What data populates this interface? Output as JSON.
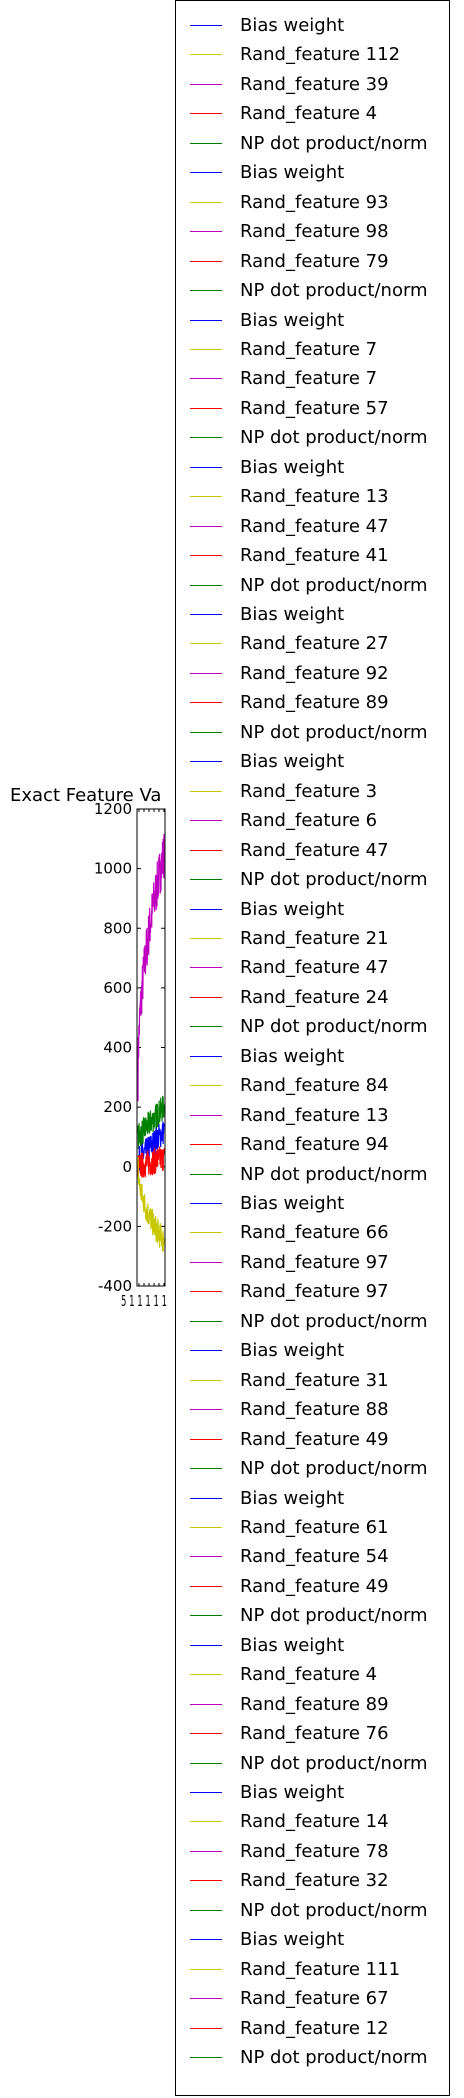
{
  "chart_data": {
    "type": "line",
    "title": "Exact Feature Va",
    "ylim": [
      -400,
      1200
    ],
    "yticks": [
      "-400",
      "-200",
      "0",
      "200",
      "400",
      "600",
      "800",
      "1000",
      "1200"
    ],
    "yticks_values": [
      -400,
      -200,
      0,
      200,
      400,
      600,
      800,
      1000,
      1200
    ],
    "xtick_label": "5 1 1 1 1 1",
    "legend_position": "outside-right",
    "colors": {
      "Bias weight": "#0000ff",
      "Rand_feature": "#c8c800",
      "Rand_feature_alt": "#c000c0",
      "Rand_feature_red": "#ff0000",
      "NP dot product/norm": "#008000"
    },
    "series_summary": [
      {
        "color": "#c000c0",
        "start": 300,
        "end": 1050,
        "role": "rising-magenta"
      },
      {
        "color": "#008000",
        "start": 100,
        "end": 200,
        "role": "green-band"
      },
      {
        "color": "#0000ff",
        "start": 20,
        "end": 120,
        "role": "blue-band"
      },
      {
        "color": "#ff0000",
        "start": 0,
        "end": 30,
        "role": "red-band"
      },
      {
        "color": "#c8c800",
        "start": 0,
        "end": -250,
        "role": "falling-yellow"
      }
    ],
    "legend": [
      {
        "label": "Bias weight",
        "color": "#0000ff"
      },
      {
        "label": "Rand_feature 112",
        "color": "#c8c800"
      },
      {
        "label": "Rand_feature 39",
        "color": "#c000c0"
      },
      {
        "label": "Rand_feature 4",
        "color": "#ff0000"
      },
      {
        "label": "NP dot product/norm",
        "color": "#008000"
      },
      {
        "label": "Bias weight",
        "color": "#0000ff"
      },
      {
        "label": "Rand_feature 93",
        "color": "#c8c800"
      },
      {
        "label": "Rand_feature 98",
        "color": "#c000c0"
      },
      {
        "label": "Rand_feature 79",
        "color": "#ff0000"
      },
      {
        "label": "NP dot product/norm",
        "color": "#008000"
      },
      {
        "label": "Bias weight",
        "color": "#0000ff"
      },
      {
        "label": "Rand_feature 7",
        "color": "#c8c800"
      },
      {
        "label": "Rand_feature 7",
        "color": "#c000c0"
      },
      {
        "label": "Rand_feature 57",
        "color": "#ff0000"
      },
      {
        "label": "NP dot product/norm",
        "color": "#008000"
      },
      {
        "label": "Bias weight",
        "color": "#0000ff"
      },
      {
        "label": "Rand_feature 13",
        "color": "#c8c800"
      },
      {
        "label": "Rand_feature 47",
        "color": "#c000c0"
      },
      {
        "label": "Rand_feature 41",
        "color": "#ff0000"
      },
      {
        "label": "NP dot product/norm",
        "color": "#008000"
      },
      {
        "label": "Bias weight",
        "color": "#0000ff"
      },
      {
        "label": "Rand_feature 27",
        "color": "#c8c800"
      },
      {
        "label": "Rand_feature 92",
        "color": "#c000c0"
      },
      {
        "label": "Rand_feature 89",
        "color": "#ff0000"
      },
      {
        "label": "NP dot product/norm",
        "color": "#008000"
      },
      {
        "label": "Bias weight",
        "color": "#0000ff"
      },
      {
        "label": "Rand_feature 3",
        "color": "#c8c800"
      },
      {
        "label": "Rand_feature 6",
        "color": "#c000c0"
      },
      {
        "label": "Rand_feature 47",
        "color": "#ff0000"
      },
      {
        "label": "NP dot product/norm",
        "color": "#008000"
      },
      {
        "label": "Bias weight",
        "color": "#0000ff"
      },
      {
        "label": "Rand_feature 21",
        "color": "#c8c800"
      },
      {
        "label": "Rand_feature 47",
        "color": "#c000c0"
      },
      {
        "label": "Rand_feature 24",
        "color": "#ff0000"
      },
      {
        "label": "NP dot product/norm",
        "color": "#008000"
      },
      {
        "label": "Bias weight",
        "color": "#0000ff"
      },
      {
        "label": "Rand_feature 84",
        "color": "#c8c800"
      },
      {
        "label": "Rand_feature 13",
        "color": "#c000c0"
      },
      {
        "label": "Rand_feature 94",
        "color": "#ff0000"
      },
      {
        "label": "NP dot product/norm",
        "color": "#008000"
      },
      {
        "label": "Bias weight",
        "color": "#0000ff"
      },
      {
        "label": "Rand_feature 66",
        "color": "#c8c800"
      },
      {
        "label": "Rand_feature 97",
        "color": "#c000c0"
      },
      {
        "label": "Rand_feature 97",
        "color": "#ff0000"
      },
      {
        "label": "NP dot product/norm",
        "color": "#008000"
      },
      {
        "label": "Bias weight",
        "color": "#0000ff"
      },
      {
        "label": "Rand_feature 31",
        "color": "#c8c800"
      },
      {
        "label": "Rand_feature 88",
        "color": "#c000c0"
      },
      {
        "label": "Rand_feature 49",
        "color": "#ff0000"
      },
      {
        "label": "NP dot product/norm",
        "color": "#008000"
      },
      {
        "label": "Bias weight",
        "color": "#0000ff"
      },
      {
        "label": "Rand_feature 61",
        "color": "#c8c800"
      },
      {
        "label": "Rand_feature 54",
        "color": "#c000c0"
      },
      {
        "label": "Rand_feature 49",
        "color": "#ff0000"
      },
      {
        "label": "NP dot product/norm",
        "color": "#008000"
      },
      {
        "label": "Bias weight",
        "color": "#0000ff"
      },
      {
        "label": "Rand_feature 4",
        "color": "#c8c800"
      },
      {
        "label": "Rand_feature 89",
        "color": "#c000c0"
      },
      {
        "label": "Rand_feature 76",
        "color": "#ff0000"
      },
      {
        "label": "NP dot product/norm",
        "color": "#008000"
      },
      {
        "label": "Bias weight",
        "color": "#0000ff"
      },
      {
        "label": "Rand_feature 14",
        "color": "#c8c800"
      },
      {
        "label": "Rand_feature 78",
        "color": "#c000c0"
      },
      {
        "label": "Rand_feature 32",
        "color": "#ff0000"
      },
      {
        "label": "NP dot product/norm",
        "color": "#008000"
      },
      {
        "label": "Bias weight",
        "color": "#0000ff"
      },
      {
        "label": "Rand_feature 111",
        "color": "#c8c800"
      },
      {
        "label": "Rand_feature 67",
        "color": "#c000c0"
      },
      {
        "label": "Rand_feature 12",
        "color": "#ff0000"
      },
      {
        "label": "NP dot product/norm",
        "color": "#008000"
      }
    ]
  }
}
